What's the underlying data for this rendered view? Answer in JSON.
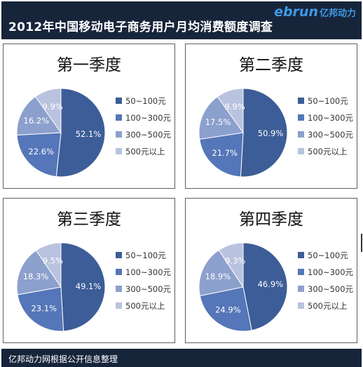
{
  "header": {
    "title": "2012年中国移动电子商务用户月均消费额度调查"
  },
  "logo": {
    "brand": "ebrun",
    "brand_cn": "亿邦动力"
  },
  "footer": {
    "source": "亿邦动力网根据公开信息整理"
  },
  "colors": {
    "header_bg": "#17253b",
    "slice_1": "#3c5d97",
    "slice_2": "#5576b8",
    "slice_3": "#8ca0cd",
    "slice_4": "#b9c3df"
  },
  "chart_data": [
    {
      "type": "pie",
      "title": "第一季度",
      "categories": [
        "50~100元",
        "100~300元",
        "300~500元",
        "500元以上"
      ],
      "values": [
        52.1,
        22.6,
        16.2,
        9.9
      ],
      "labels": [
        "52.1%",
        "22.6%",
        "16.2%",
        "9.9%"
      ],
      "legend": "right"
    },
    {
      "type": "pie",
      "title": "第二季度",
      "categories": [
        "50~100元",
        "100~300元",
        "300~500元",
        "500元以上"
      ],
      "values": [
        50.9,
        21.7,
        17.5,
        9.9
      ],
      "labels": [
        "50.9%",
        "21.7%",
        "17.5%",
        "9.9%"
      ],
      "legend": "right"
    },
    {
      "type": "pie",
      "title": "第三季度",
      "categories": [
        "50~100元",
        "100~300元",
        "300~500元",
        "500元以上"
      ],
      "values": [
        49.1,
        23.1,
        18.3,
        9.5
      ],
      "labels": [
        "49.1%",
        "23.1%",
        "18.3%",
        "9.5%"
      ],
      "legend": "right"
    },
    {
      "type": "pie",
      "title": "第四季度",
      "categories": [
        "50~100元",
        "100~300元",
        "300~500元",
        "500元以上"
      ],
      "values": [
        46.9,
        24.9,
        18.9,
        9.3
      ],
      "labels": [
        "46.9%",
        "24.9%",
        "18.9%",
        "9.3%"
      ],
      "legend": "right"
    }
  ]
}
